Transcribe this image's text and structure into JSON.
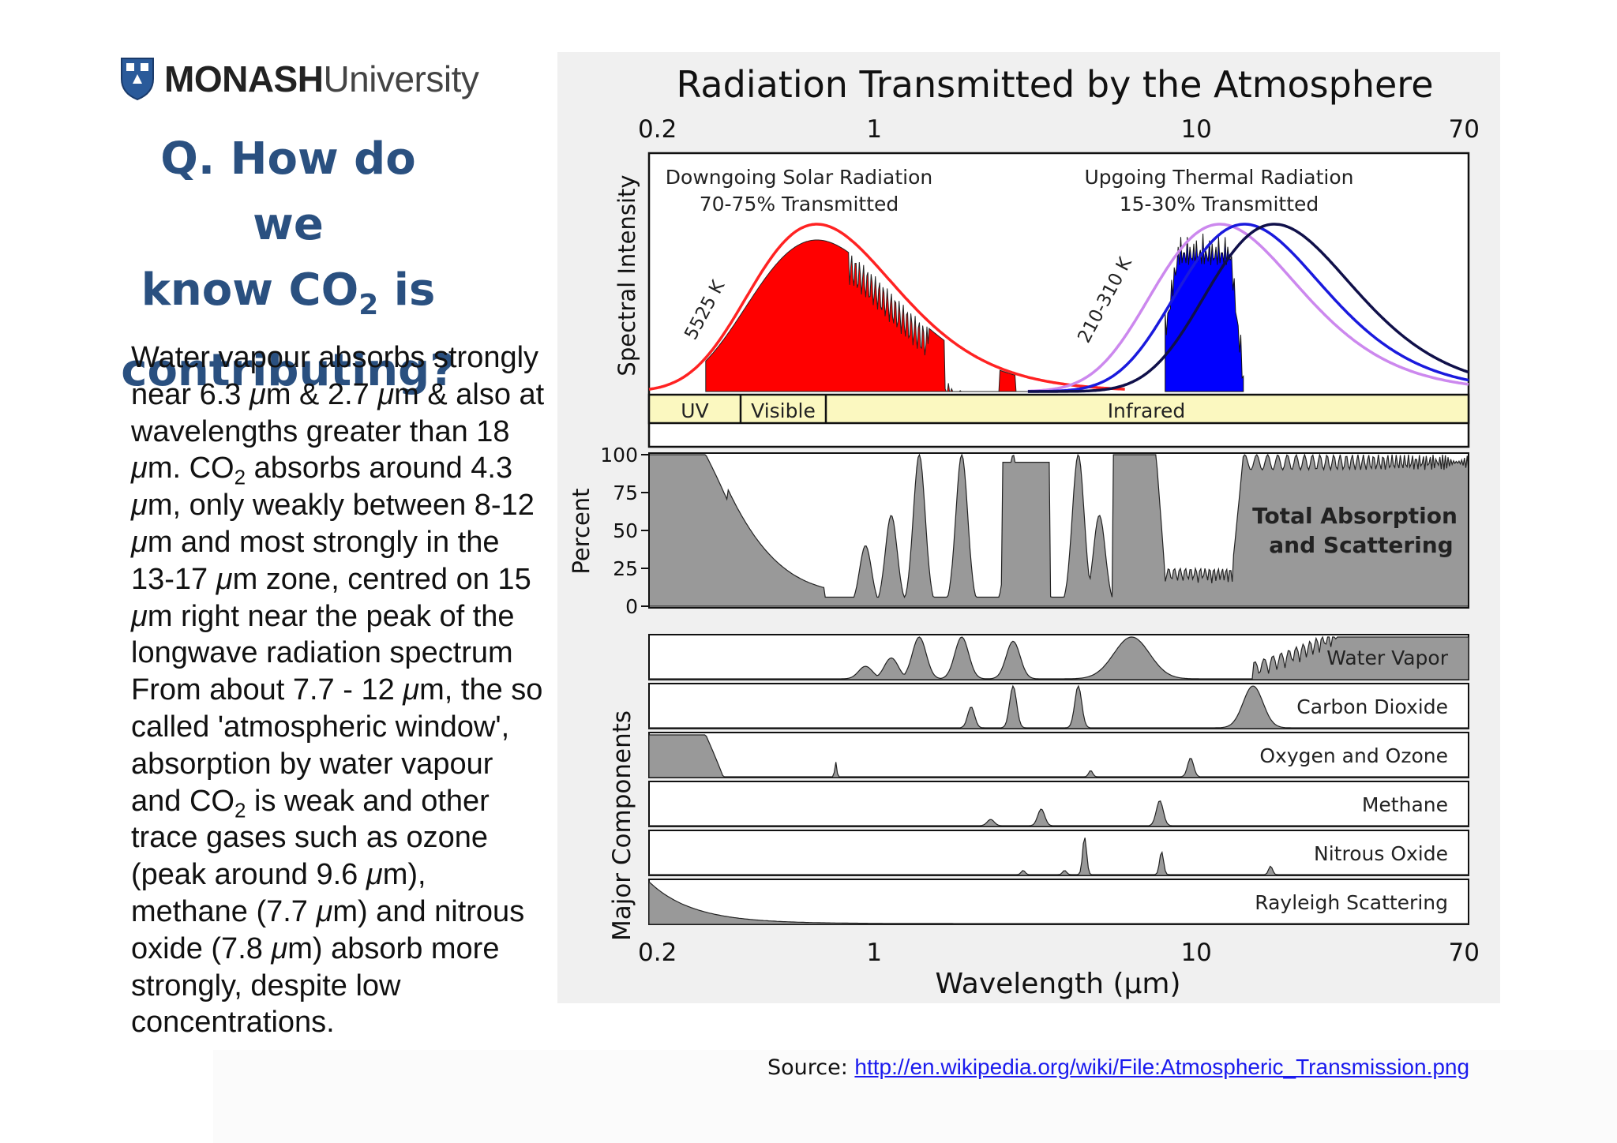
{
  "logo": {
    "brand": "MONASH",
    "suffix": "University",
    "icon": "shield-crest-icon"
  },
  "title": {
    "line1": "Q. How do we",
    "line2_pre": "know CO",
    "line2_sub": "2",
    "line2_post": " is",
    "line3": "contributing?"
  },
  "body": {
    "lines": [
      [
        {
          "t": "Water vapour absorbs strongly"
        }
      ],
      [
        {
          "t": "near 6.3 "
        },
        {
          "t": "μ",
          "i": 1
        },
        {
          "t": "m & 2.7 "
        },
        {
          "t": "μ",
          "i": 1
        },
        {
          "t": "m & also at"
        }
      ],
      [
        {
          "t": "wavelengths greater than 18"
        }
      ],
      [
        {
          "t": "μ",
          "i": 1
        },
        {
          "t": "m. CO"
        },
        {
          "t": "2",
          "s": 1
        },
        {
          "t": " absorbs around 4.3"
        }
      ],
      [
        {
          "t": "μ",
          "i": 1
        },
        {
          "t": "m, only weakly between 8-12"
        }
      ],
      [
        {
          "t": "μ",
          "i": 1
        },
        {
          "t": "m and most strongly in the"
        }
      ],
      [
        {
          "t": "13-17 "
        },
        {
          "t": "μ",
          "i": 1
        },
        {
          "t": "m zone, centred on 15"
        }
      ],
      [
        {
          "t": "μ",
          "i": 1
        },
        {
          "t": "m right near the peak of the"
        }
      ],
      [
        {
          "t": "longwave radiation spectrum"
        }
      ],
      [
        {
          "t": "From about 7.7 - 12 "
        },
        {
          "t": "μ",
          "i": 1
        },
        {
          "t": "m, the so"
        }
      ],
      [
        {
          "t": "called 'atmospheric window',"
        }
      ],
      [
        {
          "t": "absorption by water vapour"
        }
      ],
      [
        {
          "t": "and CO"
        },
        {
          "t": "2",
          "s": 1
        },
        {
          "t": " is weak and other"
        }
      ],
      [
        {
          "t": "trace gases such as ozone"
        }
      ],
      [
        {
          "t": "(peak around 9.6 "
        },
        {
          "t": "μ",
          "i": 1
        },
        {
          "t": "m),"
        }
      ],
      [
        {
          "t": "methane (7.7 "
        },
        {
          "t": "μ",
          "i": 1
        },
        {
          "t": "m) and nitrous"
        }
      ],
      [
        {
          "t": "oxide (7.8 "
        },
        {
          "t": "μ",
          "i": 1
        },
        {
          "t": "m) absorb more"
        }
      ],
      [
        {
          "t": "strongly, despite low"
        }
      ],
      [
        {
          "t": "concentrations."
        }
      ]
    ]
  },
  "figure": {
    "title": "Radiation Transmitted by the Atmosphere",
    "top_ticks": [
      "0.2",
      "1",
      "10",
      "70"
    ],
    "bottom_ticks": [
      "0.2",
      "1",
      "10",
      "70"
    ],
    "xlabel": "Wavelength (μm)",
    "spectral_ylabel": "Spectral Intensity",
    "percent_ylabel": "Percent",
    "components_ylabel": "Major Components",
    "percent_ticks": [
      "100",
      "75",
      "50",
      "25",
      "0"
    ],
    "solar_label_1": "Downgoing Solar Radiation",
    "solar_label_2": "70-75% Transmitted",
    "thermal_label_1": "Upgoing Thermal Radiation",
    "thermal_label_2": "15-30% Transmitted",
    "solar_temp": "5525 K",
    "thermal_temp": "210-310 K",
    "bands": [
      "UV",
      "Visible",
      "Infrared"
    ],
    "total_label_1": "Total Absorption",
    "total_label_2": "and Scattering",
    "components": [
      "Water Vapor",
      "Carbon Dioxide",
      "Oxygen and Ozone",
      "Methane",
      "Nitrous Oxide",
      "Rayleigh Scattering"
    ],
    "colors": {
      "solar": "#ff0000",
      "thermal": "#0000ff",
      "gray": "#999999",
      "band_fill": "#fbf8c0"
    }
  },
  "source": {
    "label": "Source: ",
    "url": "http://en.wikipedia.org/wiki/File:Atmospheric_Transmission.png"
  }
}
